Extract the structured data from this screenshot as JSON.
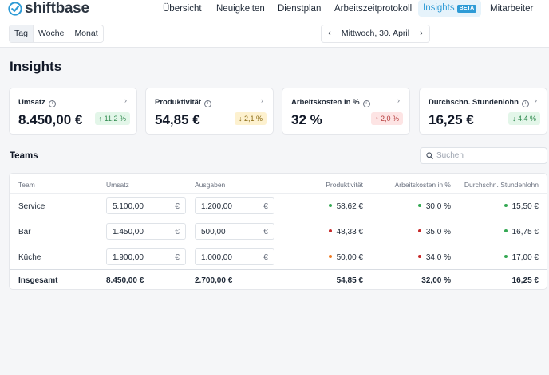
{
  "app": {
    "logo_text": "shiftbase"
  },
  "nav": {
    "items": [
      "Übersicht",
      "Neuigkeiten",
      "Dienstplan",
      "Arbeitszeitprotokoll"
    ],
    "active": "Insights",
    "beta": "BETA",
    "last": "Mitarbeiter"
  },
  "toolbar": {
    "views": [
      "Tag",
      "Woche",
      "Monat"
    ],
    "active_view": "Tag",
    "date": "Mittwoch, 30. April"
  },
  "page": {
    "title": "Insights"
  },
  "kpis": [
    {
      "label": "Umsatz",
      "value": "8.450,00 €",
      "badge": "11,2 %",
      "trend": "up",
      "status": "green"
    },
    {
      "label": "Produktivität",
      "value": "54,85 €",
      "badge": "2,1 %",
      "trend": "down",
      "status": "amber"
    },
    {
      "label": "Arbeitskosten in %",
      "value": "32 %",
      "badge": "2,0 %",
      "trend": "up",
      "status": "red"
    },
    {
      "label": "Durchschn. Stundenlohn",
      "value": "16,25 €",
      "badge": "4,4 %",
      "trend": "down",
      "status": "green"
    }
  ],
  "teams": {
    "title": "Teams",
    "search_placeholder": "Suchen",
    "columns": [
      "Team",
      "Umsatz",
      "Ausgaben",
      "Produktivität",
      "Arbeitskosten in %",
      "Durchschn. Stundenlohn"
    ],
    "currency": "€",
    "rows": [
      {
        "team": "Service",
        "umsatz": "5.100,00",
        "ausgaben": "1.200,00",
        "produktivitaet": "58,62 €",
        "prod_status": "#34a853",
        "arbeitskosten": "30,0 %",
        "ak_status": "#34a853",
        "stundenlohn": "15,50 €",
        "sl_status": "#34a853"
      },
      {
        "team": "Bar",
        "umsatz": "1.450,00",
        "ausgaben": "500,00",
        "produktivitaet": "48,33 €",
        "prod_status": "#c62828",
        "arbeitskosten": "35,0 %",
        "ak_status": "#c62828",
        "stundenlohn": "16,75 €",
        "sl_status": "#34a853"
      },
      {
        "team": "Küche",
        "umsatz": "1.900,00",
        "ausgaben": "1.000,00",
        "produktivitaet": "50,00 €",
        "prod_status": "#ef7b22",
        "arbeitskosten": "34,0 %",
        "ak_status": "#c62828",
        "stundenlohn": "17,00 €",
        "sl_status": "#34a853"
      }
    ],
    "total": {
      "label": "Insgesamt",
      "umsatz": "8.450,00 €",
      "ausgaben": "2.700,00 €",
      "produktivitaet": "54,85 €",
      "arbeitskosten": "32,00 %",
      "stundenlohn": "16,25 €"
    }
  }
}
